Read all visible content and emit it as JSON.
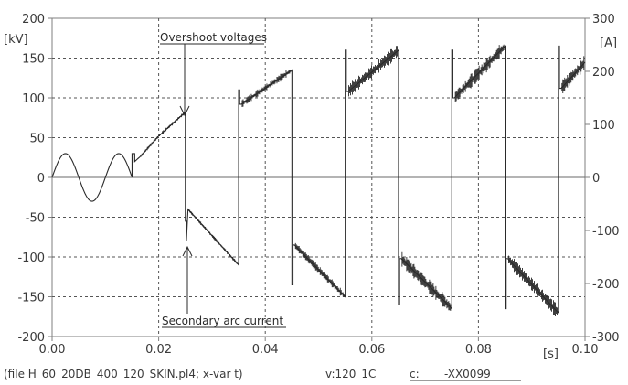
{
  "chart_data": {
    "type": "line",
    "xlabel": "[s]",
    "ylabel": "[kV]",
    "y2label": "[A]",
    "xlim": [
      0,
      0.1
    ],
    "ylim": [
      -200,
      200
    ],
    "y2lim": [
      -300,
      300
    ],
    "grid": true,
    "x_ticks": [
      "0.00",
      "0.02",
      "0.04",
      "0.06",
      "0.08",
      "0.10"
    ],
    "y_ticks": [
      "200",
      "150",
      "100",
      "50",
      "0",
      "-50",
      "-100",
      "-150",
      "-200"
    ],
    "y2_ticks": [
      "300",
      "200",
      "100",
      "0",
      "-100",
      "-200",
      "-300"
    ],
    "annotations": [
      {
        "text": "Overshoot voltages",
        "x": 0.0253,
        "y": 83
      },
      {
        "text": "Secondary arc current",
        "x": 0.0253,
        "y": -78
      }
    ],
    "series": [
      {
        "color": "#2a2a2a",
        "x": [
          0,
          0.005,
          0.01,
          0.015,
          0.015,
          0.0155,
          0.0155,
          0.0165,
          0.02,
          0.025,
          0.025,
          0.0252,
          0.0252,
          0.0255,
          0.035,
          0.035,
          0.0352,
          0.0352,
          0.0355,
          0.045,
          0.045,
          0.0452,
          0.0452,
          0.0455,
          0.055,
          0.055,
          0.0552,
          0.0552,
          0.0555,
          0.065,
          0.065,
          0.0652,
          0.0652,
          0.0655,
          0.075,
          0.075,
          0.0752,
          0.0752,
          0.0755,
          0.085,
          0.085,
          0.0852,
          0.0852,
          0.0855,
          0.095,
          0.095,
          0.0952,
          0.0952,
          0.0955,
          0.1
        ],
        "y": [
          0,
          30,
          0,
          -30,
          30,
          30,
          20,
          26,
          52,
          82,
          -55,
          -55,
          -80,
          -40,
          -110,
          110,
          110,
          92,
          92,
          135,
          -135,
          -135,
          -85,
          -85,
          -150,
          160,
          160,
          108,
          108,
          160,
          -160,
          -160,
          -102,
          -102,
          -165,
          160,
          160,
          100,
          100,
          165,
          -165,
          -165,
          -102,
          -102,
          -170,
          165,
          165,
          112,
          112,
          145
        ]
      }
    ],
    "footer": {
      "file": "(file H_60_20DB_400_120_SKIN.pl4; x-var t)",
      "var": "v:120_1C",
      "c_label": "c:",
      "c_value": "-XX0099"
    }
  }
}
